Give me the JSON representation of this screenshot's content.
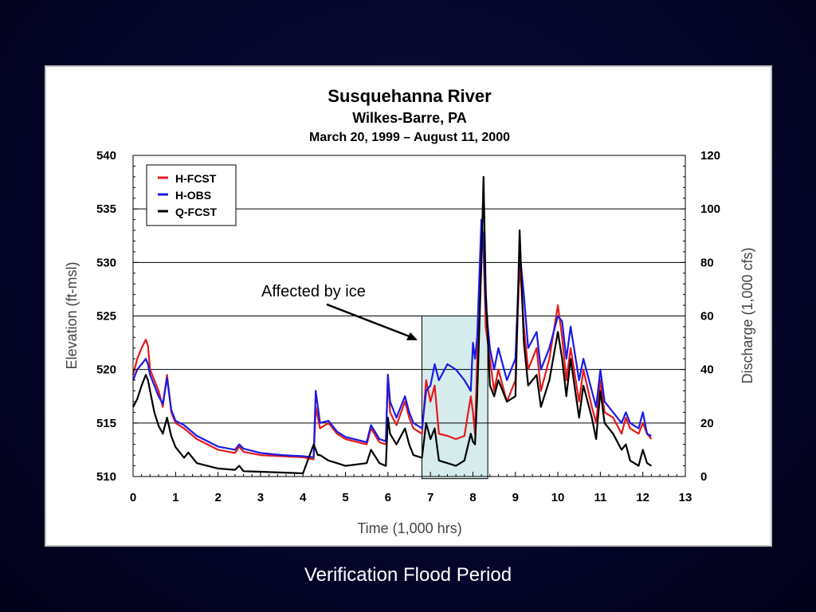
{
  "slide": {
    "caption": "Verification Flood Period"
  },
  "chart_data": {
    "type": "line",
    "title": "Susquehanna River",
    "subtitle": "Wilkes-Barre, PA",
    "date_range": "March 20, 1999 – August 11, 2000",
    "xlabel": "Time (1,000 hrs)",
    "ylabel": "Elevation (ft-msl)",
    "y2label": "Discharge (1,000 cfs)",
    "xlim": [
      0,
      13
    ],
    "ylim": [
      510,
      540
    ],
    "y2lim": [
      0,
      120
    ],
    "x_ticks": [
      "0",
      "1",
      "2",
      "3",
      "4",
      "5",
      "6",
      "7",
      "8",
      "9",
      "10",
      "11",
      "12",
      "13"
    ],
    "y_ticks": [
      "510",
      "515",
      "520",
      "525",
      "530",
      "535",
      "540"
    ],
    "y2_ticks": [
      "0",
      "20",
      "40",
      "60",
      "80",
      "100",
      "120"
    ],
    "grid": "horizontal",
    "legend_position": "top-left",
    "annotation": {
      "text": "Affected by ice",
      "region_x": [
        6.8,
        8.35
      ]
    },
    "colors": {
      "H-FCST": "#e31a1c",
      "H-OBS": "#1a1ae6",
      "Q-FCST": "#000000",
      "ice_fill": "#d6ecec"
    },
    "series": [
      {
        "name": "H-FCST",
        "axis": "left",
        "x": [
          0,
          0.1,
          0.2,
          0.3,
          0.35,
          0.4,
          0.5,
          0.6,
          0.7,
          0.8,
          0.9,
          1.0,
          1.2,
          1.5,
          2.0,
          2.4,
          2.5,
          2.6,
          3.0,
          3.5,
          4.0,
          4.25,
          4.3,
          4.35,
          4.4,
          4.6,
          4.8,
          5.0,
          5.5,
          5.6,
          5.8,
          5.95,
          6.0,
          6.05,
          6.2,
          6.4,
          6.5,
          6.6,
          6.8,
          6.9,
          7.0,
          7.1,
          7.2,
          7.4,
          7.6,
          7.8,
          7.95,
          8.0,
          8.05,
          8.1,
          8.2,
          8.25,
          8.3,
          8.4,
          8.5,
          8.6,
          8.8,
          9.0,
          9.1,
          9.2,
          9.3,
          9.5,
          9.6,
          9.8,
          10.0,
          10.1,
          10.2,
          10.3,
          10.5,
          10.6,
          10.8,
          10.9,
          11.0,
          11.1,
          11.3,
          11.5,
          11.6,
          11.7,
          11.9,
          12.0,
          12.1,
          12.2
        ],
        "values": [
          519.5,
          521,
          522,
          522.8,
          522.2,
          520,
          519,
          518,
          516.5,
          519.5,
          516,
          515,
          514.5,
          513.5,
          512.5,
          512.2,
          512.8,
          512.3,
          512,
          511.9,
          511.8,
          511.6,
          516.5,
          515.5,
          514.5,
          515,
          514,
          513.5,
          513,
          514.5,
          513.2,
          513,
          519.5,
          516,
          514.8,
          517,
          515.5,
          514.5,
          514,
          519,
          517,
          518.5,
          514,
          513.8,
          513.5,
          513.8,
          517.5,
          516,
          514,
          521,
          533,
          531,
          524,
          521,
          518,
          520,
          517,
          519,
          530,
          524,
          520,
          522,
          518,
          521,
          526,
          523,
          519,
          522,
          517,
          520,
          516.5,
          515,
          519,
          516,
          515.5,
          514,
          515.5,
          514.5,
          514,
          515,
          514,
          513.5
        ]
      },
      {
        "name": "H-OBS",
        "axis": "left",
        "x": [
          0,
          0.1,
          0.2,
          0.3,
          0.35,
          0.4,
          0.5,
          0.6,
          0.7,
          0.8,
          0.9,
          1.0,
          1.2,
          1.5,
          2.0,
          2.4,
          2.5,
          2.6,
          3.0,
          3.5,
          4.0,
          4.25,
          4.3,
          4.35,
          4.4,
          4.6,
          4.8,
          5.0,
          5.5,
          5.6,
          5.8,
          5.95,
          6.0,
          6.05,
          6.2,
          6.4,
          6.5,
          6.6,
          6.8,
          6.9,
          7.0,
          7.1,
          7.2,
          7.4,
          7.6,
          7.8,
          7.95,
          8.0,
          8.05,
          8.1,
          8.2,
          8.25,
          8.3,
          8.4,
          8.5,
          8.6,
          8.8,
          9.0,
          9.1,
          9.2,
          9.3,
          9.5,
          9.6,
          9.8,
          10.0,
          10.1,
          10.2,
          10.3,
          10.5,
          10.6,
          10.8,
          10.9,
          11.0,
          11.1,
          11.3,
          11.5,
          11.6,
          11.7,
          11.9,
          12.0,
          12.1,
          12.2
        ],
        "values": [
          519,
          520,
          520.5,
          521,
          520.5,
          519.5,
          518.5,
          517.5,
          516.8,
          519.2,
          516.2,
          515.2,
          514.8,
          513.8,
          512.8,
          512.5,
          513,
          512.6,
          512.2,
          512,
          511.9,
          511.8,
          518,
          516.5,
          515,
          515.2,
          514.2,
          513.7,
          513.2,
          514.8,
          513.5,
          513.3,
          519.5,
          517,
          515.5,
          517.5,
          516,
          515,
          514.5,
          518,
          518.5,
          520.5,
          519,
          520.5,
          520,
          519,
          518,
          522.5,
          521,
          523,
          534,
          532,
          526,
          522,
          520,
          522,
          519,
          521,
          531,
          527,
          522,
          523.5,
          520,
          522,
          525,
          524.5,
          521,
          524,
          519,
          521,
          518,
          516.5,
          520,
          517,
          516,
          515,
          516,
          515,
          514.5,
          516,
          514,
          513.8
        ]
      },
      {
        "name": "Q-FCST",
        "axis": "right",
        "x": [
          0,
          0.1,
          0.2,
          0.3,
          0.35,
          0.4,
          0.5,
          0.6,
          0.7,
          0.8,
          0.9,
          1.0,
          1.2,
          1.3,
          1.5,
          2.0,
          2.4,
          2.5,
          2.6,
          3.0,
          3.5,
          4.0,
          4.25,
          4.3,
          4.35,
          4.4,
          4.6,
          4.8,
          5.0,
          5.5,
          5.6,
          5.8,
          5.95,
          6.0,
          6.05,
          6.2,
          6.4,
          6.5,
          6.6,
          6.8,
          6.9,
          7.0,
          7.1,
          7.2,
          7.4,
          7.6,
          7.8,
          7.95,
          8.0,
          8.05,
          8.1,
          8.2,
          8.25,
          8.3,
          8.4,
          8.5,
          8.6,
          8.8,
          9.0,
          9.1,
          9.2,
          9.3,
          9.5,
          9.6,
          9.8,
          10.0,
          10.1,
          10.2,
          10.3,
          10.5,
          10.6,
          10.8,
          10.9,
          11.0,
          11.1,
          11.3,
          11.5,
          11.6,
          11.7,
          11.9,
          12.0,
          12.1,
          12.2
        ],
        "values": [
          26,
          29,
          34,
          38,
          36,
          32,
          24,
          19,
          16,
          22,
          15,
          11,
          7,
          9,
          5,
          3,
          2.5,
          4,
          2,
          1.8,
          1.5,
          1.2,
          12,
          10,
          8,
          8,
          6,
          5,
          4,
          5,
          10,
          5,
          4,
          22,
          16,
          12,
          18,
          12,
          8,
          7,
          20,
          14,
          18,
          6,
          5,
          4,
          6,
          16,
          13,
          12,
          30,
          80,
          112,
          70,
          34,
          30,
          36,
          28,
          30,
          92,
          50,
          34,
          38,
          26,
          36,
          54,
          44,
          30,
          44,
          22,
          34,
          22,
          14,
          32,
          20,
          16,
          10,
          12,
          6,
          4,
          10,
          5,
          4
        ]
      }
    ]
  }
}
